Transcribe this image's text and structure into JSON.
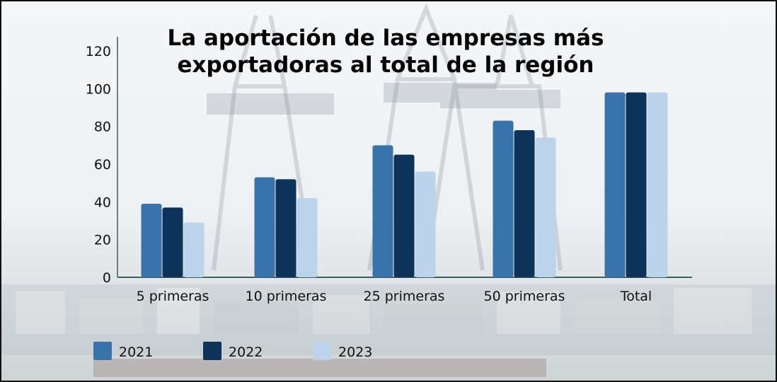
{
  "chart_data": {
    "type": "bar",
    "title_lines": [
      "La aportación de las empresas más",
      "exportadoras al total de la región"
    ],
    "categories": [
      "5 primeras",
      "10 primeras",
      "25 primeras",
      "50 primeras",
      "Total"
    ],
    "series": [
      {
        "name": "2021",
        "color": "#3a73aa",
        "values": [
          39,
          53,
          70,
          83,
          98
        ]
      },
      {
        "name": "2022",
        "color": "#0d3358",
        "values": [
          37,
          52,
          65,
          78,
          98
        ]
      },
      {
        "name": "2023",
        "color": "#bcd4ea",
        "values": [
          29,
          42,
          56,
          74,
          98
        ]
      }
    ],
    "yticks": [
      0,
      20,
      40,
      60,
      80,
      100,
      120
    ],
    "ylim": [
      0,
      120
    ],
    "xlabel": "",
    "ylabel": "",
    "grid": false,
    "legend_position": "bottom-left"
  }
}
